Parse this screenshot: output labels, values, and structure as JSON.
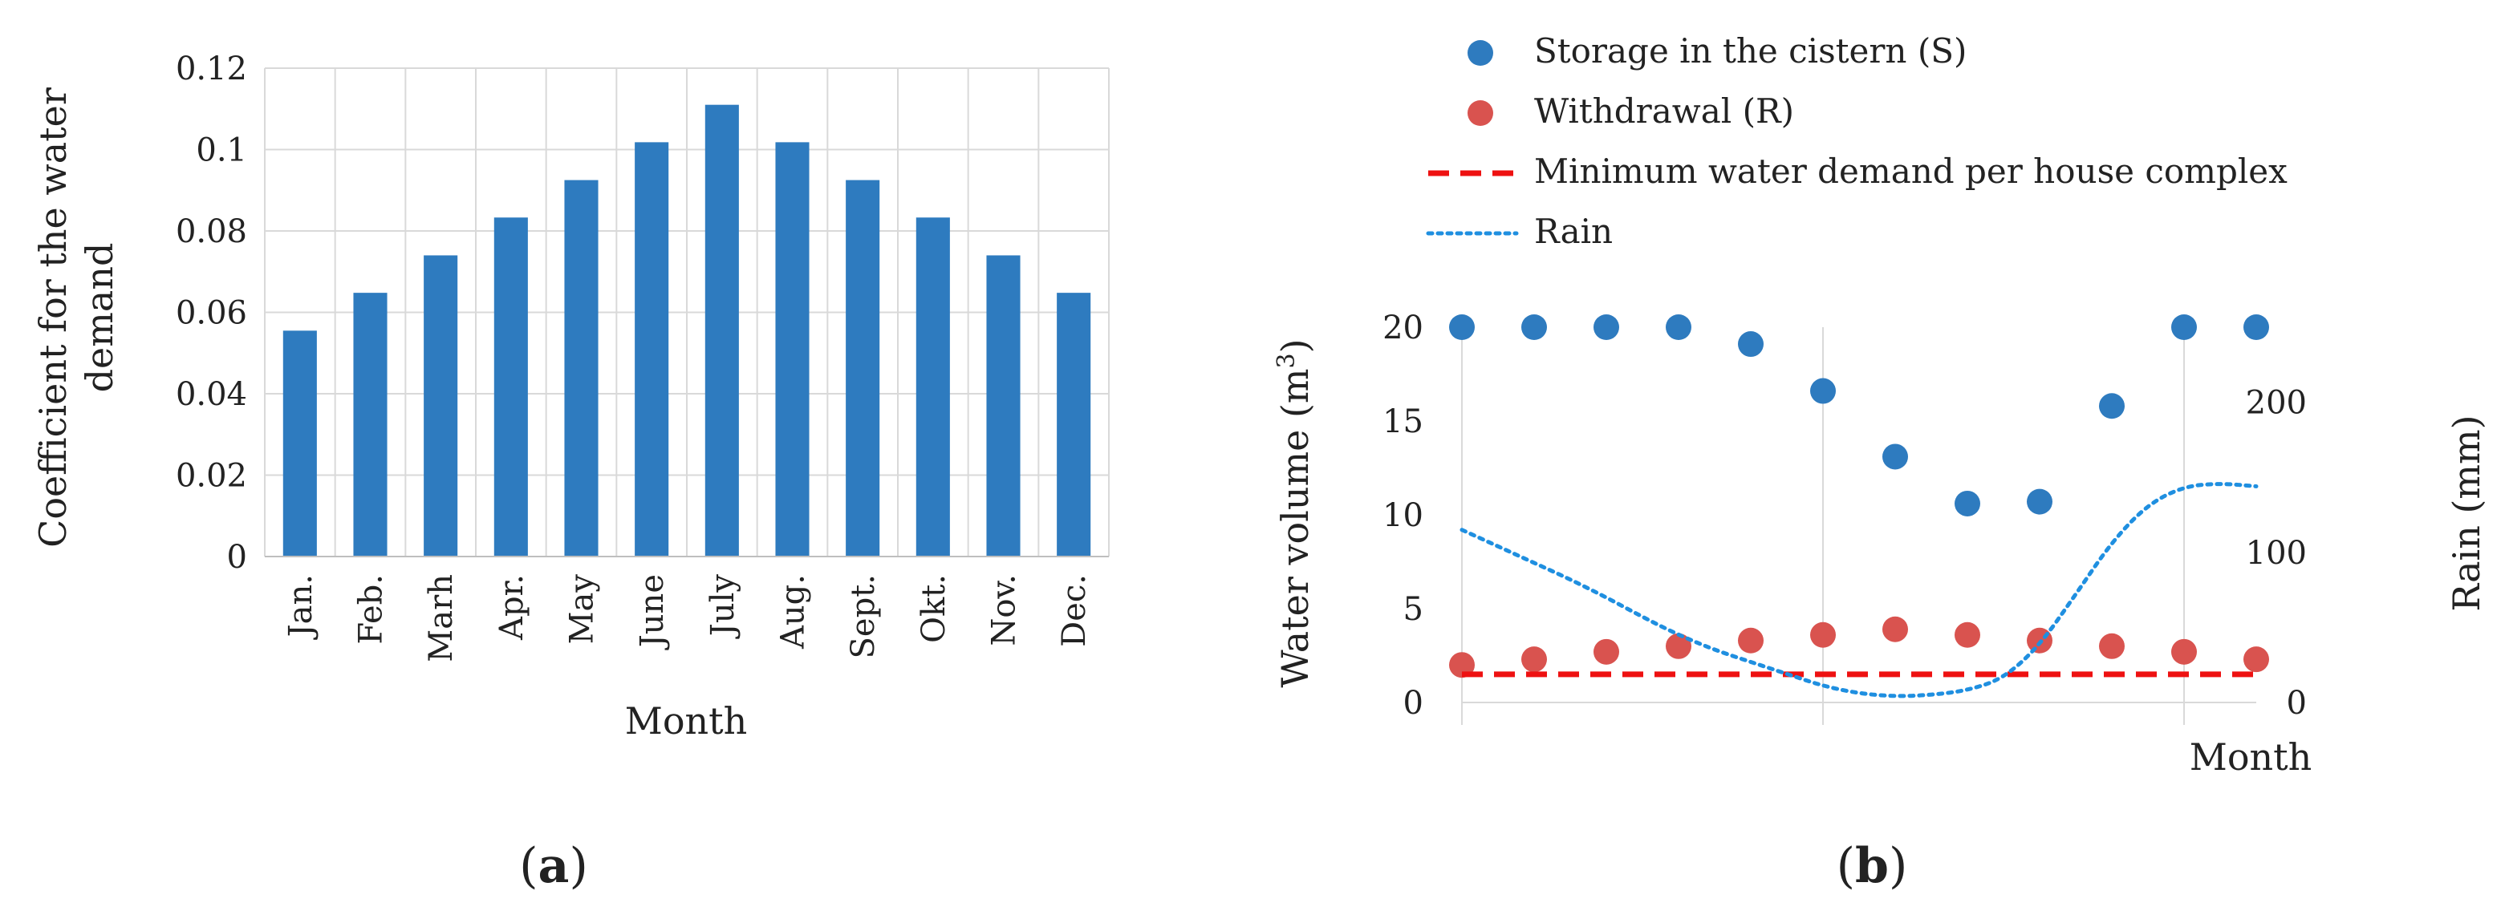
{
  "colors": {
    "bar": "#2e7bbf",
    "storage": "#2e7bbf",
    "withdrawal": "#d9534f",
    "demand": "#ee1111",
    "rain": "#1f8fe0",
    "grid": "#d9d9d9"
  },
  "panel_labels": {
    "a": {
      "open": "(",
      "letter": "a",
      "close": ")"
    },
    "b": {
      "open": "(",
      "letter": "b",
      "close": ")"
    }
  },
  "chart_data": [
    {
      "id": "a",
      "type": "bar",
      "title": "",
      "xlabel": "Month",
      "ylabel_line1": "Coefficient for the water",
      "ylabel_line2": "demand",
      "ylim": [
        0,
        0.12
      ],
      "yticks": [
        "0",
        "0.02",
        "0.04",
        "0.06",
        "0.08",
        "0.1",
        "0.12"
      ],
      "categories": [
        "Jan.",
        "Feb.",
        "Marh",
        "Apr.",
        "May",
        "June",
        "July",
        "Aug.",
        "Sept.",
        "Okt.",
        "Nov.",
        "Dec."
      ],
      "values": [
        0.0555,
        0.0648,
        0.074,
        0.0833,
        0.0925,
        0.1018,
        0.111,
        0.1018,
        0.0925,
        0.0833,
        0.074,
        0.0648
      ],
      "grid": true
    },
    {
      "id": "b",
      "type": "scatter",
      "xlabel": "Month",
      "ylabel": "Water volume (m",
      "ylabel_sup": "3",
      "ylabel_close": ")",
      "y2label": "Rain (mm)",
      "ylim": [
        0,
        20
      ],
      "y2lim": [
        0,
        250
      ],
      "yticks": [
        "0",
        "5",
        "10",
        "15",
        "20"
      ],
      "y2ticks": [
        "0",
        "100",
        "200"
      ],
      "legend_position": "top",
      "x": [
        1,
        2,
        3,
        4,
        5,
        6,
        7,
        8,
        9,
        10,
        11,
        12
      ],
      "series": [
        {
          "name": "Storage in the cistern (S)",
          "kind": "points",
          "values": [
            20,
            20,
            20,
            20,
            19.1,
            16.6,
            13.1,
            10.6,
            10.7,
            15.8,
            20,
            20
          ]
        },
        {
          "name": "Withdrawal (R)",
          "kind": "points",
          "values": [
            2,
            2.3,
            2.7,
            3,
            3.3,
            3.6,
            3.9,
            3.6,
            3.3,
            3,
            2.7,
            2.3
          ]
        },
        {
          "name": "Minimum water demand per house complex",
          "kind": "dashed-line",
          "values": [
            1.5,
            1.5,
            1.5,
            1.5,
            1.5,
            1.5,
            1.5,
            1.5,
            1.5,
            1.5,
            1.5,
            1.5
          ]
        },
        {
          "name": "Rain",
          "kind": "dotted-line",
          "axis": "right",
          "x": [
            1,
            1.5,
            2,
            2.5,
            3,
            3.5,
            4,
            4.5,
            5,
            5.5,
            6,
            6.5,
            7,
            7.5,
            8,
            8.5,
            9,
            9.5,
            10,
            10.5,
            11,
            11.5,
            12
          ],
          "values": [
            115,
            104,
            93,
            82,
            70,
            57,
            45,
            35,
            27,
            19,
            11,
            6,
            4,
            5,
            8,
            16,
            38,
            72,
            107,
            132,
            144,
            146,
            144
          ]
        }
      ]
    }
  ]
}
